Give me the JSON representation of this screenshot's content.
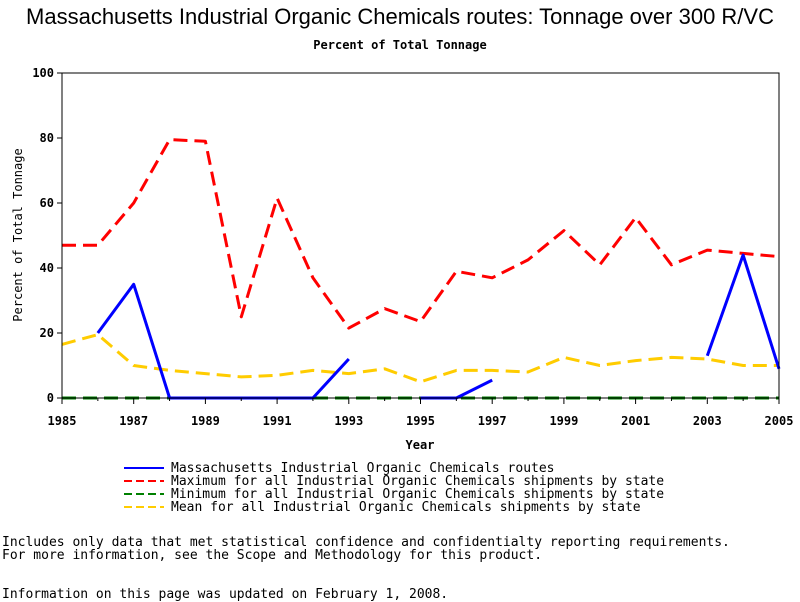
{
  "chart_data": {
    "type": "line",
    "title": "Massachusetts Industrial Organic Chemicals routes: Tonnage over 300 R/VC",
    "subtitle": "Percent of Total Tonnage",
    "xlabel": "Year",
    "ylabel": "Percent of Total Tonnage",
    "xlim": [
      1985,
      2005
    ],
    "ylim": [
      0,
      100
    ],
    "x_ticks": [
      1985,
      1987,
      1989,
      1991,
      1993,
      1995,
      1997,
      1999,
      2001,
      2003,
      2005
    ],
    "y_ticks": [
      0,
      20,
      40,
      60,
      80,
      100
    ],
    "grid": false,
    "legend_placement": "bottom",
    "series": [
      {
        "name": "Massachusetts Industrial Organic Chemicals routes",
        "color": "#0000ff",
        "style": "solid",
        "points": [
          [
            1986,
            20
          ],
          [
            1987,
            35
          ],
          [
            1988,
            0
          ],
          [
            1989,
            0
          ],
          [
            1990,
            0
          ],
          [
            1991,
            0
          ],
          [
            1992,
            0
          ],
          [
            1993,
            12
          ],
          [
            1994,
            null
          ],
          [
            1995,
            0
          ],
          [
            1996,
            0
          ],
          [
            1997,
            5.5
          ],
          [
            1998,
            null
          ],
          [
            1999,
            null
          ],
          [
            2000,
            null
          ],
          [
            2001,
            null
          ],
          [
            2002,
            null
          ],
          [
            2003,
            13
          ],
          [
            2004,
            44
          ],
          [
            2005,
            9
          ]
        ]
      },
      {
        "name": "Maximum for all Industrial Organic Chemicals shipments by state",
        "color": "#ff0000",
        "style": "dashed",
        "points": [
          [
            1985,
            47
          ],
          [
            1986,
            47
          ],
          [
            1987,
            60
          ],
          [
            1988,
            79.5
          ],
          [
            1989,
            79
          ],
          [
            1990,
            25
          ],
          [
            1991,
            61.5
          ],
          [
            1992,
            37
          ],
          [
            1993,
            21.5
          ],
          [
            1994,
            27.5
          ],
          [
            1995,
            23.5
          ],
          [
            1996,
            39
          ],
          [
            1997,
            37
          ],
          [
            1998,
            42.5
          ],
          [
            1999,
            51.5
          ],
          [
            2000,
            41
          ],
          [
            2001,
            55.5
          ],
          [
            2002,
            41
          ],
          [
            2003,
            45.5
          ],
          [
            2004,
            44.5
          ],
          [
            2005,
            43.5
          ]
        ]
      },
      {
        "name": "Minimum for all Industrial Organic Chemicals shipments by state",
        "color": "#008000",
        "style": "dashed",
        "points": [
          [
            1985,
            0
          ],
          [
            1986,
            0
          ],
          [
            1987,
            0
          ],
          [
            1988,
            0
          ],
          [
            1989,
            0
          ],
          [
            1990,
            0
          ],
          [
            1991,
            0
          ],
          [
            1992,
            0
          ],
          [
            1993,
            0
          ],
          [
            1994,
            0
          ],
          [
            1995,
            0
          ],
          [
            1996,
            0
          ],
          [
            1997,
            0
          ],
          [
            1998,
            0
          ],
          [
            1999,
            0
          ],
          [
            2000,
            0
          ],
          [
            2001,
            0
          ],
          [
            2002,
            0
          ],
          [
            2003,
            0
          ],
          [
            2004,
            0
          ],
          [
            2005,
            0
          ]
        ]
      },
      {
        "name": "Mean for all Industrial Organic Chemicals shipments by state",
        "color": "#ffcc00",
        "style": "dashed",
        "points": [
          [
            1985,
            16.5
          ],
          [
            1986,
            19.5
          ],
          [
            1987,
            10
          ],
          [
            1988,
            8.5
          ],
          [
            1989,
            7.5
          ],
          [
            1990,
            6.5
          ],
          [
            1991,
            7
          ],
          [
            1992,
            8.5
          ],
          [
            1993,
            7.5
          ],
          [
            1994,
            9
          ],
          [
            1995,
            5
          ],
          [
            1996,
            8.5
          ],
          [
            1997,
            8.5
          ],
          [
            1998,
            8
          ],
          [
            1999,
            12.5
          ],
          [
            2000,
            10
          ],
          [
            2001,
            11.5
          ],
          [
            2002,
            12.5
          ],
          [
            2003,
            12
          ],
          [
            2004,
            10
          ],
          [
            2005,
            10
          ]
        ]
      }
    ]
  },
  "footer": {
    "note_line1": "Includes only data that met statistical confidence and confidentialty reporting requirements.",
    "note_line2": "For more information, see the Scope and Methodology for this product.",
    "updated": "Information on this page was updated on February 1, 2008."
  }
}
